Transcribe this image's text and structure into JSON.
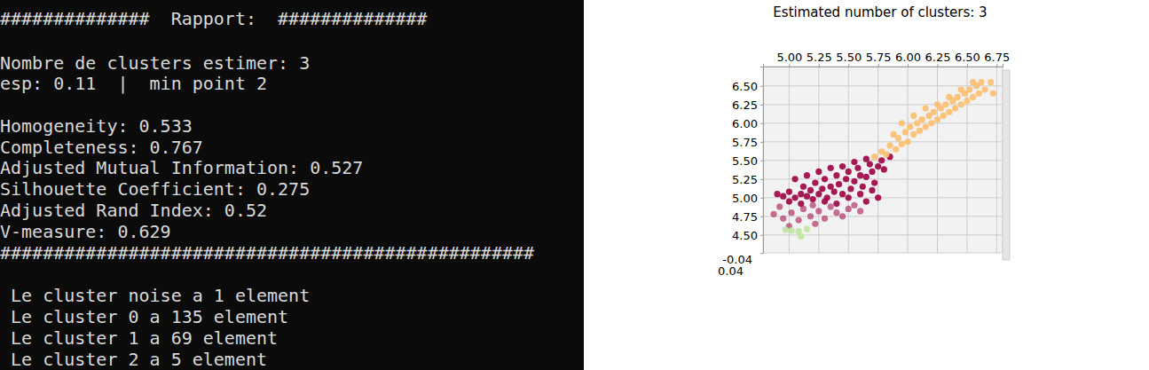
{
  "report": {
    "lines": [
      "##############  Rapport:  ##############",
      "Nombre de clusters estimer: 3",
      "esp: 0.11  |  min point 2",
      "Homogeneity: 0.533",
      "Completeness: 0.767",
      "Adjusted Mutual Information: 0.527",
      "Silhouette Coefficient: 0.275",
      "Adjusted Rand Index: 0.52",
      "V-measure: 0.629",
      "##################################################",
      " Le cluster noise a 1 element",
      " Le cluster 0 a 135 element",
      " Le cluster 1 a 69 element",
      " Le cluster 2 a 5 element"
    ]
  },
  "chart_data": {
    "type": "scatter",
    "title": "Estimated number of clusters: 3",
    "xlim": [
      4.78,
      6.8
    ],
    "ylim": [
      4.26,
      6.76
    ],
    "xticks": [
      {
        "value": 5.0,
        "label": "5.00"
      },
      5.25,
      {
        "value": 5.5,
        "label": "5.50"
      },
      5.75,
      {
        "value": 6.0,
        "label": "6.00"
      },
      6.25,
      {
        "value": 6.5,
        "label": "6.50"
      },
      6.75
    ],
    "yticks": [
      {
        "value": 4.5,
        "label": "4.50"
      },
      4.75,
      {
        "value": 5.0,
        "label": "5.00"
      },
      5.25,
      {
        "value": 5.5,
        "label": "5.50"
      },
      5.75,
      {
        "value": 6.0,
        "label": "6.00"
      },
      6.25,
      {
        "value": 6.5,
        "label": "6.50"
      }
    ],
    "zticks": [
      -0.04,
      0.04
    ],
    "grid": true,
    "series": [
      {
        "color": "#9e0142",
        "x": [
          4.9,
          4.95,
          5.0,
          5.05,
          5.1,
          5.12,
          5.15,
          5.18,
          5.2,
          5.22,
          5.25,
          5.28,
          5.3,
          5.32,
          5.35,
          5.38,
          5.4,
          5.42,
          5.45,
          5.48,
          5.5,
          5.52,
          5.55,
          5.58,
          5.6,
          5.62,
          5.65,
          5.68,
          5.7,
          5.72,
          5.75,
          5.78,
          5.8,
          5.85,
          5.05,
          5.15,
          5.25,
          5.35,
          5.45,
          5.55,
          5.65,
          5.0,
          5.1,
          5.2,
          5.3,
          5.4,
          5.5,
          5.6,
          5.7,
          5.75,
          4.87,
          4.95,
          5.02,
          5.08,
          5.12,
          5.18,
          5.25,
          5.3,
          5.35,
          5.4,
          5.45,
          5.5,
          5.55,
          5.6,
          5.22,
          5.0,
          4.92,
          5.65
        ],
        "values": [
          5.05,
          5.02,
          5.08,
          5.0,
          5.05,
          5.15,
          5.02,
          5.1,
          4.98,
          5.2,
          5.05,
          5.12,
          5.25,
          5.0,
          5.15,
          5.08,
          5.3,
          5.18,
          5.05,
          5.25,
          5.35,
          5.12,
          5.22,
          5.4,
          5.3,
          5.15,
          5.28,
          5.45,
          5.35,
          5.2,
          5.42,
          5.5,
          5.38,
          5.55,
          5.25,
          5.3,
          5.35,
          5.4,
          5.42,
          5.48,
          5.52,
          4.95,
          4.92,
          4.9,
          4.95,
          4.92,
          5.0,
          5.05,
          5.1,
          5.0,
          4.78,
          4.72,
          4.8,
          4.7,
          4.85,
          4.75,
          4.82,
          4.72,
          4.88,
          4.8,
          4.75,
          4.85,
          4.9,
          4.82,
          4.65,
          4.62,
          4.88,
          4.95
        ]
      },
      {
        "color": "#fdbe6e",
        "x": [
          5.72,
          5.78,
          5.82,
          5.85,
          5.9,
          5.92,
          5.95,
          5.98,
          6.0,
          6.02,
          6.05,
          6.08,
          6.1,
          6.12,
          6.15,
          6.18,
          6.2,
          6.22,
          6.25,
          6.28,
          6.3,
          6.32,
          6.35,
          6.38,
          6.4,
          6.42,
          6.45,
          6.48,
          6.5,
          6.52,
          6.55,
          6.58,
          6.6,
          6.62,
          6.65,
          6.7,
          6.72,
          6.55,
          6.35,
          6.15,
          5.95,
          6.05,
          6.25,
          6.45,
          5.88
        ],
        "values": [
          5.55,
          5.62,
          5.58,
          5.7,
          5.65,
          5.8,
          5.72,
          5.88,
          5.75,
          5.95,
          5.85,
          6.0,
          5.9,
          6.05,
          5.95,
          6.1,
          6.0,
          6.15,
          6.05,
          6.2,
          6.1,
          6.25,
          6.15,
          6.3,
          6.2,
          6.35,
          6.25,
          6.4,
          6.3,
          6.45,
          6.35,
          6.5,
          6.4,
          6.55,
          6.45,
          6.55,
          6.4,
          6.55,
          6.35,
          6.2,
          6.0,
          6.1,
          6.25,
          6.45,
          5.85
        ]
      },
      {
        "color": "#bee5a0",
        "x": [
          4.97,
          5.02,
          5.08,
          5.15,
          5.1
        ],
        "values": [
          4.57,
          4.56,
          4.55,
          4.58,
          4.48
        ]
      }
    ]
  }
}
